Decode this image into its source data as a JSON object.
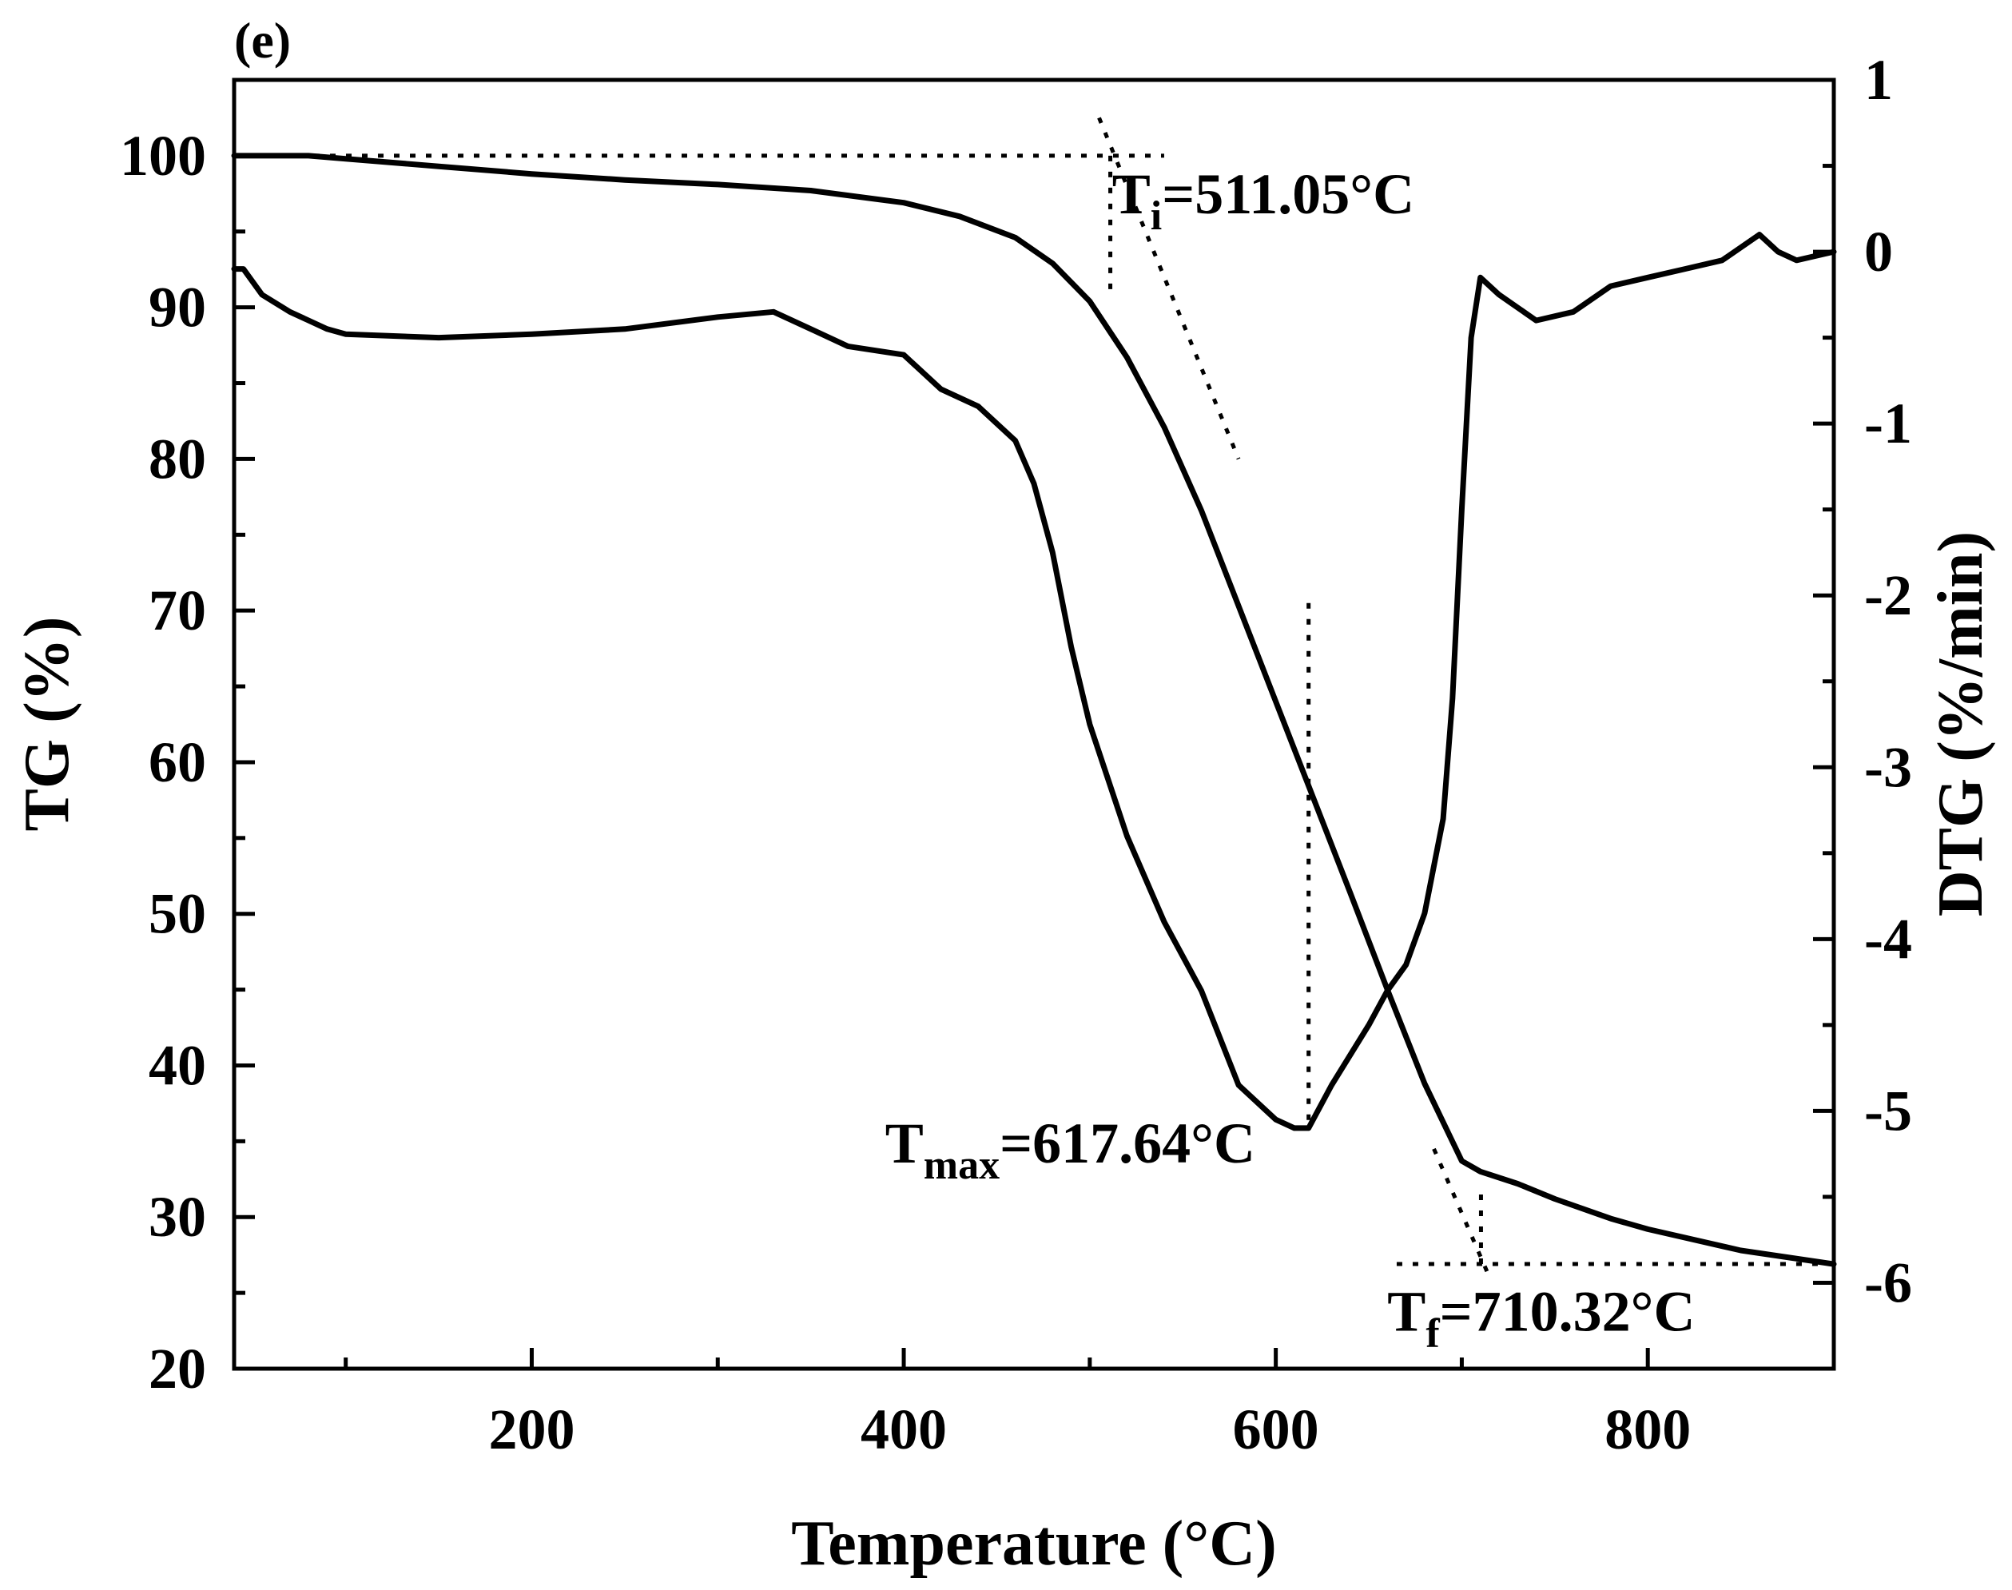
{
  "chart_data": {
    "type": "line",
    "panel_label": "(e)",
    "xlabel": "Temperature (°C)",
    "ylabel_left": "TG (%)",
    "ylabel_right": "DTG (%/min)",
    "xlim": [
      40,
      900
    ],
    "ylim_left": [
      20,
      105
    ],
    "ylim_right": [
      -6.5,
      1.0
    ],
    "x_ticks": [
      200,
      400,
      600,
      800
    ],
    "x_tick_labels": [
      "200",
      "400",
      "600",
      "800"
    ],
    "y_left_ticks": [
      20,
      30,
      40,
      50,
      60,
      70,
      80,
      90,
      100
    ],
    "y_left_tick_labels": [
      "20",
      "30",
      "40",
      "50",
      "60",
      "70",
      "80",
      "90",
      "100"
    ],
    "y_right_ticks": [
      1,
      0,
      -1,
      -2,
      -3,
      -4,
      -5,
      -6
    ],
    "y_right_tick_labels": [
      "1",
      "0",
      "-1",
      "-2",
      "-3",
      "-4",
      "-5",
      "-6"
    ],
    "series": [
      {
        "name": "TG",
        "axis": "left",
        "x": [
          40,
          60,
          80,
          100,
          150,
          200,
          250,
          300,
          350,
          400,
          430,
          460,
          480,
          500,
          520,
          540,
          560,
          580,
          600,
          620,
          640,
          660,
          680,
          700,
          710,
          730,
          750,
          780,
          800,
          850,
          900
        ],
        "y": [
          100.0,
          100.0,
          100.0,
          99.8,
          99.3,
          98.8,
          98.4,
          98.1,
          97.7,
          96.9,
          96.0,
          94.6,
          92.9,
          90.4,
          86.7,
          82.1,
          76.6,
          70.3,
          64.0,
          57.7,
          51.4,
          45.0,
          38.8,
          33.7,
          33.0,
          32.2,
          31.2,
          29.9,
          29.2,
          27.8,
          26.9
        ]
      },
      {
        "name": "DTG",
        "axis": "right",
        "x": [
          40,
          45,
          55,
          70,
          90,
          100,
          150,
          200,
          250,
          300,
          330,
          350,
          370,
          400,
          420,
          440,
          460,
          470,
          480,
          490,
          500,
          520,
          540,
          560,
          580,
          600,
          610,
          617.64,
          630,
          650,
          660,
          670,
          680,
          690,
          695,
          700,
          705,
          710,
          720,
          740,
          760,
          780,
          800,
          820,
          840,
          860,
          870,
          880,
          900
        ],
        "y": [
          -0.1,
          -0.1,
          -0.25,
          -0.35,
          -0.45,
          -0.48,
          -0.5,
          -0.48,
          -0.45,
          -0.38,
          -0.35,
          -0.45,
          -0.55,
          -0.6,
          -0.8,
          -0.9,
          -1.1,
          -1.35,
          -1.75,
          -2.3,
          -2.75,
          -3.4,
          -3.9,
          -4.3,
          -4.85,
          -5.05,
          -5.1,
          -5.1,
          -4.85,
          -4.5,
          -4.3,
          -4.15,
          -3.85,
          -3.3,
          -2.6,
          -1.5,
          -0.5,
          -0.15,
          -0.25,
          -0.4,
          -0.35,
          -0.2,
          -0.15,
          -0.1,
          -0.05,
          0.1,
          0.0,
          -0.05,
          0.0
        ]
      }
    ],
    "reference_lines": [
      {
        "name": "tg-initial-baseline",
        "axis": "left",
        "x": [
          40,
          540
        ],
        "y": [
          100.0,
          100.0
        ]
      },
      {
        "name": "tg-onset-tangent",
        "axis": "left",
        "x": [
          505,
          580
        ],
        "y": [
          102.5,
          80.0
        ]
      },
      {
        "name": "tg-endset-tangent",
        "axis": "left",
        "x": [
          685,
          715
        ],
        "y": [
          34.5,
          26.0
        ]
      },
      {
        "name": "tg-final-baseline",
        "axis": "left",
        "x": [
          665,
          900
        ],
        "y": [
          26.9,
          26.9
        ]
      },
      {
        "name": "ti-marker",
        "axis": "left",
        "x": [
          511.05,
          511.05
        ],
        "y": [
          100.0,
          91.0
        ]
      },
      {
        "name": "tf-marker",
        "axis": "left",
        "x": [
          710.32,
          710.32
        ],
        "y": [
          26.9,
          32.0
        ]
      },
      {
        "name": "tmax-marker",
        "axis": "left",
        "x": [
          617.64,
          617.64
        ],
        "y": [
          70.5,
          36.0
        ]
      }
    ],
    "annotations": [
      {
        "name": "ti",
        "main": "T",
        "sub": "i",
        "rest": "=511.05°C",
        "x": 512,
        "y": 96.2
      },
      {
        "name": "tmax",
        "main": "T",
        "sub": "max",
        "rest": "=617.64°C",
        "x": 390,
        "y": 33.6
      },
      {
        "name": "tf",
        "main": "T",
        "sub": "f",
        "rest": "=710.32°C",
        "x": 660,
        "y": 22.5
      }
    ],
    "grid": false,
    "legend": "none"
  }
}
